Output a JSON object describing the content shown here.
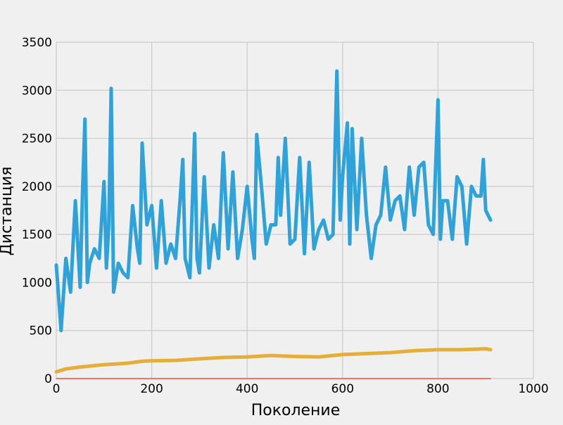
{
  "chart_data": {
    "type": "line",
    "xlabel": "Поколение",
    "ylabel": "Дистанция",
    "xlim": [
      0,
      1000
    ],
    "ylim": [
      0,
      3500
    ],
    "x_ticks": [
      0,
      200,
      400,
      600,
      800,
      1000
    ],
    "y_ticks": [
      0,
      500,
      1000,
      1500,
      2000,
      2500,
      3000,
      3500
    ],
    "grid": true,
    "background": "#f0f0f0",
    "grid_color": "#cbcbcb",
    "series": [
      {
        "color": "#30a2da",
        "x": [
          0,
          10,
          20,
          30,
          40,
          50,
          55,
          60,
          65,
          70,
          80,
          90,
          100,
          105,
          110,
          115,
          120,
          130,
          140,
          150,
          160,
          170,
          175,
          180,
          190,
          200,
          210,
          220,
          230,
          240,
          250,
          260,
          265,
          270,
          280,
          290,
          295,
          300,
          310,
          320,
          330,
          340,
          350,
          360,
          370,
          380,
          390,
          400,
          410,
          415,
          420,
          430,
          440,
          450,
          460,
          465,
          470,
          480,
          490,
          500,
          510,
          520,
          530,
          540,
          550,
          560,
          570,
          580,
          588,
          595,
          600,
          610,
          615,
          620,
          630,
          640,
          650,
          660,
          670,
          680,
          690,
          700,
          710,
          720,
          730,
          740,
          750,
          760,
          770,
          780,
          790,
          800,
          805,
          810,
          820,
          830,
          840,
          850,
          860,
          870,
          880,
          890,
          895,
          900,
          910
        ],
        "y": [
          1180,
          500,
          1250,
          900,
          1850,
          950,
          1950,
          2700,
          1000,
          1200,
          1350,
          1250,
          2050,
          1150,
          1600,
          3020,
          900,
          1200,
          1100,
          1050,
          1800,
          1350,
          1200,
          2450,
          1600,
          1800,
          1150,
          1850,
          1200,
          1400,
          1250,
          1900,
          2280,
          1250,
          1050,
          2550,
          1250,
          1100,
          2100,
          1150,
          1600,
          1250,
          2350,
          1350,
          2150,
          1250,
          1550,
          2000,
          1450,
          1250,
          2540,
          2000,
          1400,
          1600,
          1600,
          2300,
          1700,
          2500,
          1400,
          1450,
          2300,
          1300,
          2250,
          1350,
          1550,
          1650,
          1450,
          1500,
          3200,
          1650,
          2100,
          2660,
          1400,
          2600,
          1550,
          2500,
          1700,
          1250,
          1600,
          1700,
          2200,
          1650,
          1850,
          1900,
          1550,
          2200,
          1700,
          2200,
          2250,
          1600,
          1500,
          2900,
          1450,
          1850,
          1850,
          1450,
          2100,
          2000,
          1400,
          2000,
          1900,
          1900,
          2280,
          1750,
          1650
        ]
      },
      {
        "color": "#e5ae38",
        "x": [
          0,
          20,
          50,
          80,
          100,
          120,
          150,
          180,
          200,
          250,
          300,
          350,
          400,
          450,
          500,
          550,
          600,
          650,
          700,
          750,
          800,
          850,
          900,
          910
        ],
        "y": [
          70,
          100,
          120,
          135,
          145,
          150,
          160,
          180,
          185,
          190,
          205,
          220,
          225,
          240,
          230,
          225,
          250,
          260,
          270,
          290,
          300,
          300,
          310,
          300
        ]
      },
      {
        "color": "#fc4f30",
        "x": [
          0,
          910
        ],
        "y": [
          0,
          0
        ]
      }
    ]
  }
}
